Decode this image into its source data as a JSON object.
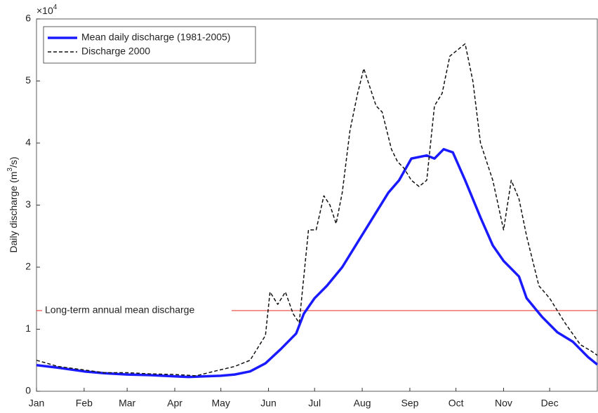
{
  "chart_data": {
    "type": "line",
    "ylabel_parts": [
      "Daily discharge (m",
      "3",
      "/s)"
    ],
    "y_multiplier": "×10",
    "y_multiplier_exp": "4",
    "xlim": [
      1,
      366
    ],
    "xticks": [
      {
        "value": 1,
        "label": "Jan"
      },
      {
        "value": 32,
        "label": "Feb"
      },
      {
        "value": 60,
        "label": "Mar"
      },
      {
        "value": 91,
        "label": "Apr"
      },
      {
        "value": 121,
        "label": "May"
      },
      {
        "value": 152,
        "label": "Jun"
      },
      {
        "value": 182,
        "label": "Jul"
      },
      {
        "value": 213,
        "label": "Aug"
      },
      {
        "value": 244,
        "label": "Sep"
      },
      {
        "value": 274,
        "label": "Oct"
      },
      {
        "value": 305,
        "label": "Nov"
      },
      {
        "value": 335,
        "label": "Dec"
      }
    ],
    "ylim": [
      0,
      6
    ],
    "yticks": [
      0,
      1,
      2,
      3,
      4,
      5,
      6
    ],
    "reference_line": {
      "value": 1.3,
      "label": "Long-term annual mean discharge",
      "color": "#e8403a"
    },
    "legend": "upper left",
    "series": [
      {
        "name": "Mean daily discharge (1981-2005)",
        "color": "#1a1aff",
        "dash": "solid",
        "x": [
          1,
          15,
          32,
          45,
          60,
          75,
          91,
          100,
          110,
          121,
          130,
          140,
          150,
          160,
          170,
          175,
          182,
          190,
          200,
          210,
          220,
          230,
          237,
          245,
          255,
          260,
          266,
          272,
          280,
          290,
          298,
          305,
          315,
          320,
          330,
          340,
          350,
          360,
          366
        ],
        "values": [
          0.42,
          0.38,
          0.32,
          0.29,
          0.27,
          0.26,
          0.24,
          0.23,
          0.24,
          0.25,
          0.27,
          0.32,
          0.45,
          0.68,
          0.93,
          1.25,
          1.5,
          1.7,
          2.0,
          2.4,
          2.8,
          3.2,
          3.4,
          3.75,
          3.8,
          3.75,
          3.9,
          3.85,
          3.4,
          2.8,
          2.35,
          2.1,
          1.85,
          1.5,
          1.2,
          0.95,
          0.8,
          0.55,
          0.43
        ]
      },
      {
        "name": "Discharge 2000",
        "color": "#111111",
        "dash": "dashed",
        "x": [
          1,
          15,
          30,
          45,
          60,
          75,
          91,
          105,
          118,
          130,
          140,
          150,
          153,
          158,
          163,
          168,
          172,
          178,
          183,
          188,
          192,
          196,
          200,
          205,
          210,
          214,
          218,
          222,
          226,
          232,
          236,
          240,
          245,
          250,
          255,
          260,
          265,
          270,
          275,
          280,
          285,
          290,
          298,
          305,
          310,
          315,
          320,
          328,
          335,
          345,
          355,
          362,
          366
        ],
        "values": [
          0.5,
          0.4,
          0.35,
          0.3,
          0.3,
          0.28,
          0.27,
          0.25,
          0.33,
          0.4,
          0.5,
          0.9,
          1.6,
          1.4,
          1.6,
          1.25,
          1.1,
          2.6,
          2.6,
          3.15,
          3.0,
          2.7,
          3.2,
          4.2,
          4.8,
          5.2,
          4.9,
          4.6,
          4.5,
          3.9,
          3.7,
          3.6,
          3.4,
          3.3,
          3.4,
          4.6,
          4.8,
          5.4,
          5.5,
          5.6,
          5.0,
          4.0,
          3.4,
          2.6,
          3.4,
          3.1,
          2.5,
          1.7,
          1.5,
          1.1,
          0.75,
          0.65,
          0.58
        ]
      }
    ]
  }
}
